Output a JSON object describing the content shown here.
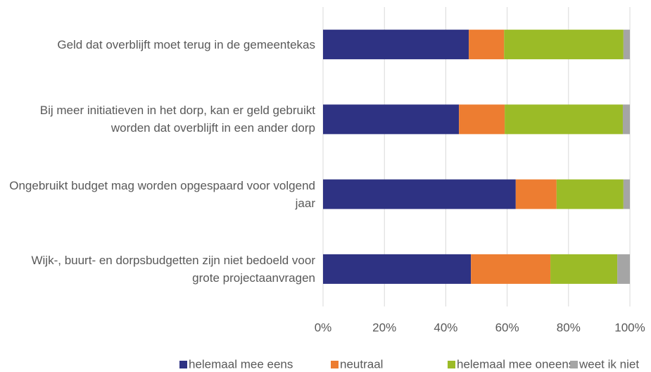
{
  "chart_data": {
    "type": "stacked_barh",
    "categories": [
      "Geld dat overblijft moet terug in de gemeentekas",
      "Bij meer initiatieven in het dorp, kan er geld gebruikt worden dat overblijft in een ander dorp",
      "Ongebruikt budget mag worden opgespaard voor volgend jaar",
      "Wijk-, buurt- en dorpsbudgetten zijn niet bedoeld voor grote projectaanvragen"
    ],
    "series": [
      {
        "name": "helemaal mee eens",
        "color": "#2e3283",
        "values": [
          47.5,
          44.3,
          62.8,
          48.2
        ]
      },
      {
        "name": "neutraal",
        "color": "#ed7d31",
        "values": [
          11.5,
          14.9,
          13.3,
          25.9
        ]
      },
      {
        "name": "helemaal mee oneens",
        "color": "#9bbb27",
        "values": [
          38.9,
          38.5,
          21.8,
          21.8
        ]
      },
      {
        "name": "weet ik niet",
        "color": "#a5a5a5",
        "values": [
          2.1,
          2.3,
          2.1,
          4.1
        ]
      }
    ],
    "xlim": [
      0,
      100
    ],
    "xticks": [
      {
        "value": 0,
        "label": "0%"
      },
      {
        "value": 20,
        "label": "20%"
      },
      {
        "value": 40,
        "label": "40%"
      },
      {
        "value": 60,
        "label": "60%"
      },
      {
        "value": 80,
        "label": "80%"
      },
      {
        "value": 100,
        "label": "100%"
      }
    ],
    "grid": true,
    "legend": "bottom"
  }
}
